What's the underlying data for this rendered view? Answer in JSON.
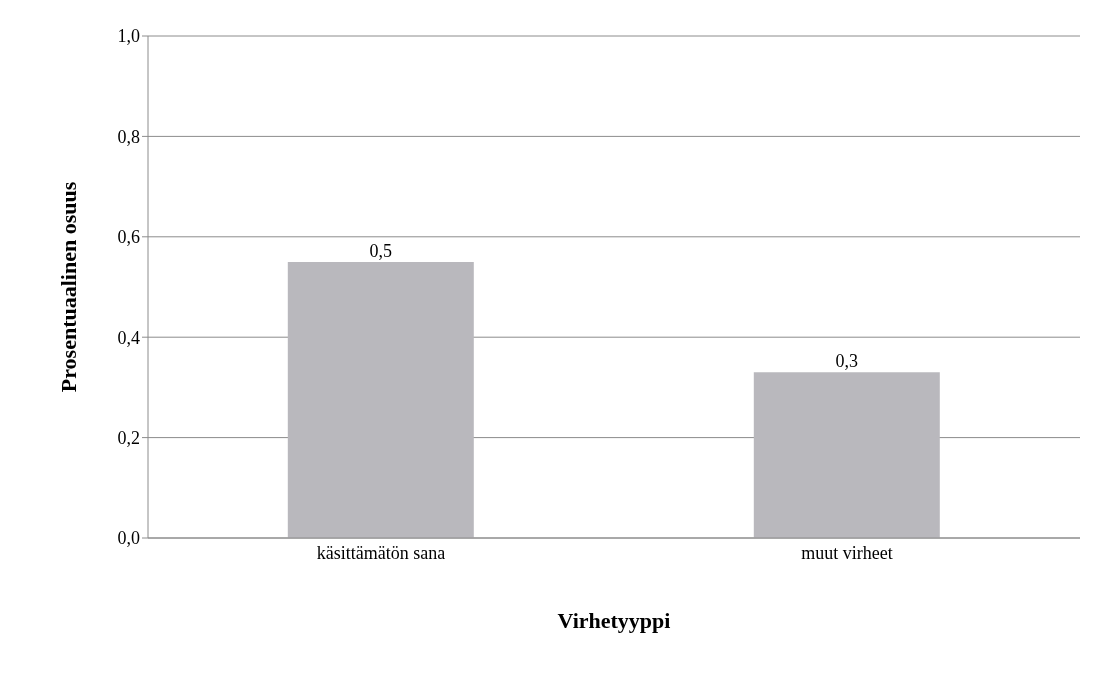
{
  "chart_data": {
    "type": "bar",
    "xlabel": "Virhetyyppi",
    "ylabel": "Prosentuaalinen osuus",
    "categories": [
      "käsittämätön sana",
      "muut virheet"
    ],
    "values": [
      0.55,
      0.33
    ],
    "value_labels": [
      "0,5",
      "0,3"
    ],
    "color": "#b9b8bd",
    "ylim": [
      0,
      1
    ],
    "yticks": [
      {
        "value": 0,
        "label": "0,0"
      },
      {
        "value": 0.2,
        "label": "0,2"
      },
      {
        "value": 0.4,
        "label": "0,4"
      },
      {
        "value": 0.6,
        "label": "0,6"
      },
      {
        "value": 0.8,
        "label": "0,8"
      },
      {
        "value": 1,
        "label": "1,0"
      }
    ],
    "grid": "y"
  }
}
